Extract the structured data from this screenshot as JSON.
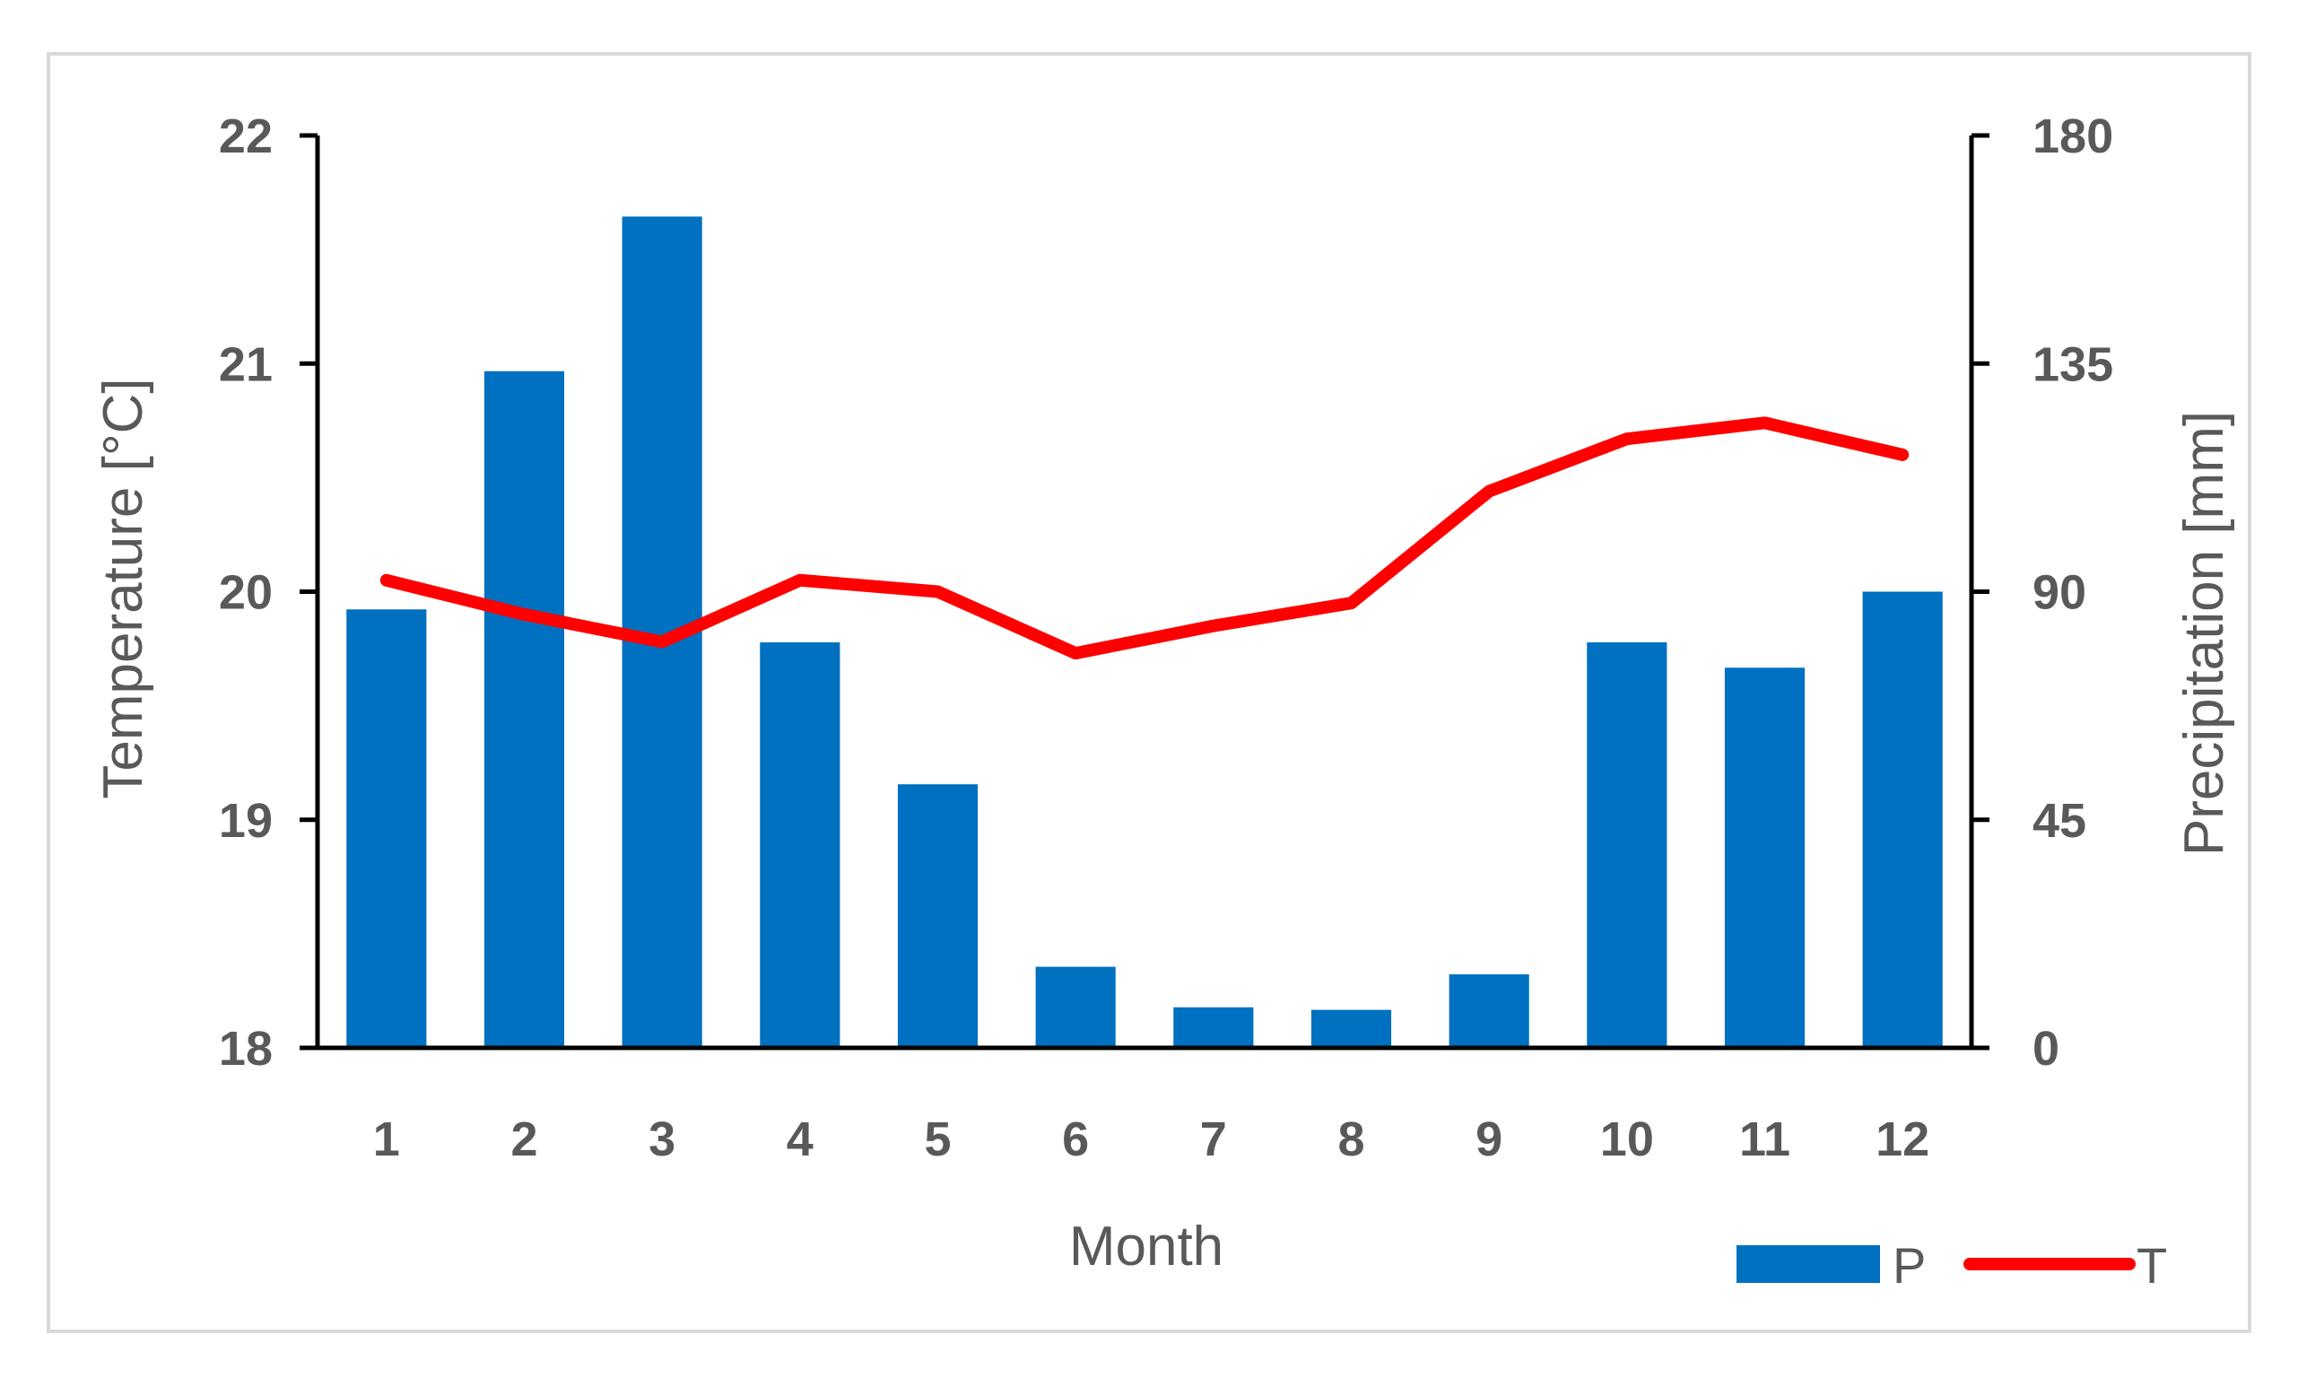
{
  "chart_data": {
    "type": "bar",
    "categories": [
      "1",
      "2",
      "3",
      "4",
      "5",
      "6",
      "7",
      "8",
      "9",
      "10",
      "11",
      "12"
    ],
    "series": [
      {
        "name": "P",
        "type": "bar",
        "axis": "right",
        "color": "#0070C0",
        "values": [
          86.5,
          133.5,
          164,
          80,
          52,
          16,
          8,
          7.5,
          14.5,
          80,
          75,
          90
        ]
      },
      {
        "name": "T",
        "type": "line",
        "axis": "left",
        "color": "#FF0000",
        "values": [
          20.05,
          19.9,
          19.78,
          20.05,
          20.0,
          19.73,
          19.85,
          19.95,
          20.44,
          20.67,
          20.74,
          20.6
        ]
      }
    ],
    "xlabel": "Month",
    "ylabel": "Temperature [°C]",
    "y2label": "Precipitation [mm]",
    "ylim": [
      18,
      22
    ],
    "y2lim": [
      0,
      180
    ],
    "yticks": [
      "18",
      "19",
      "20",
      "21",
      "22"
    ],
    "y2ticks": [
      "0",
      "45",
      "90",
      "135",
      "180"
    ],
    "grid": false,
    "legend_position": "bottom-right"
  }
}
